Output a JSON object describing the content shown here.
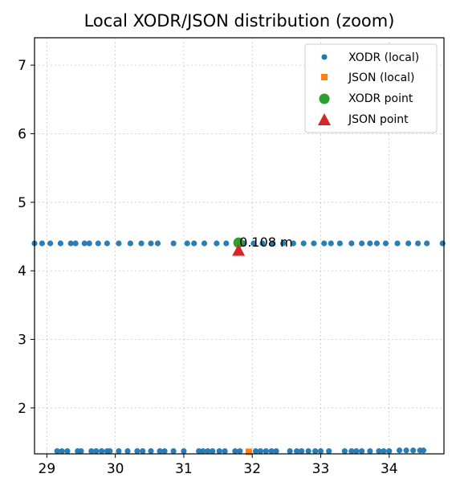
{
  "chart_data": {
    "type": "scatter",
    "title": "Local XODR/JSON distribution (zoom)",
    "xlabel": "",
    "ylabel": "",
    "xlim": [
      28.82,
      34.8
    ],
    "ylim": [
      1.33,
      7.4
    ],
    "xticks": [
      29,
      30,
      31,
      32,
      33,
      34
    ],
    "yticks": [
      2,
      3,
      4,
      5,
      6,
      7
    ],
    "grid": true,
    "legend_position": "top-right",
    "annotation": "0.108 m",
    "series": [
      {
        "name": "XODR (local)",
        "marker": "circle",
        "color": "#1f77b4",
        "points": [
          [
            28.82,
            4.4
          ],
          [
            28.93,
            4.4
          ],
          [
            29.05,
            4.4
          ],
          [
            29.2,
            4.4
          ],
          [
            29.35,
            4.4
          ],
          [
            29.42,
            4.4
          ],
          [
            29.55,
            4.4
          ],
          [
            29.62,
            4.4
          ],
          [
            29.75,
            4.4
          ],
          [
            29.88,
            4.4
          ],
          [
            30.05,
            4.4
          ],
          [
            30.22,
            4.4
          ],
          [
            30.38,
            4.4
          ],
          [
            30.52,
            4.4
          ],
          [
            30.62,
            4.4
          ],
          [
            30.85,
            4.4
          ],
          [
            31.05,
            4.4
          ],
          [
            31.15,
            4.4
          ],
          [
            31.3,
            4.4
          ],
          [
            31.48,
            4.4
          ],
          [
            31.62,
            4.4
          ],
          [
            31.88,
            4.4
          ],
          [
            32.02,
            4.4
          ],
          [
            32.15,
            4.4
          ],
          [
            32.3,
            4.4
          ],
          [
            32.45,
            4.4
          ],
          [
            32.6,
            4.4
          ],
          [
            32.75,
            4.4
          ],
          [
            32.9,
            4.4
          ],
          [
            33.05,
            4.4
          ],
          [
            33.15,
            4.4
          ],
          [
            33.28,
            4.4
          ],
          [
            33.45,
            4.4
          ],
          [
            33.6,
            4.4
          ],
          [
            33.72,
            4.4
          ],
          [
            33.82,
            4.4
          ],
          [
            33.95,
            4.4
          ],
          [
            34.12,
            4.4
          ],
          [
            34.28,
            4.4
          ],
          [
            34.42,
            4.4
          ],
          [
            34.55,
            4.4
          ],
          [
            34.78,
            4.4
          ],
          [
            29.15,
            1.37
          ],
          [
            29.22,
            1.37
          ],
          [
            29.3,
            1.37
          ],
          [
            29.45,
            1.37
          ],
          [
            29.5,
            1.37
          ],
          [
            29.65,
            1.37
          ],
          [
            29.72,
            1.37
          ],
          [
            29.8,
            1.37
          ],
          [
            29.88,
            1.37
          ],
          [
            29.92,
            1.37
          ],
          [
            30.05,
            1.37
          ],
          [
            30.18,
            1.37
          ],
          [
            30.32,
            1.37
          ],
          [
            30.4,
            1.37
          ],
          [
            30.52,
            1.37
          ],
          [
            30.65,
            1.37
          ],
          [
            30.72,
            1.37
          ],
          [
            30.85,
            1.37
          ],
          [
            31.0,
            1.37
          ],
          [
            31.22,
            1.37
          ],
          [
            31.28,
            1.37
          ],
          [
            31.35,
            1.37
          ],
          [
            31.42,
            1.37
          ],
          [
            31.52,
            1.37
          ],
          [
            31.6,
            1.37
          ],
          [
            31.75,
            1.37
          ],
          [
            31.82,
            1.37
          ],
          [
            32.05,
            1.37
          ],
          [
            32.12,
            1.37
          ],
          [
            32.2,
            1.37
          ],
          [
            32.28,
            1.37
          ],
          [
            32.35,
            1.37
          ],
          [
            32.55,
            1.37
          ],
          [
            32.65,
            1.37
          ],
          [
            32.72,
            1.37
          ],
          [
            32.82,
            1.37
          ],
          [
            32.92,
            1.37
          ],
          [
            33.0,
            1.37
          ],
          [
            33.12,
            1.37
          ],
          [
            33.35,
            1.37
          ],
          [
            33.45,
            1.37
          ],
          [
            33.52,
            1.37
          ],
          [
            33.6,
            1.37
          ],
          [
            33.72,
            1.37
          ],
          [
            33.85,
            1.37
          ],
          [
            33.92,
            1.37
          ],
          [
            34.0,
            1.37
          ],
          [
            34.15,
            1.38
          ],
          [
            34.25,
            1.38
          ],
          [
            34.35,
            1.38
          ],
          [
            34.45,
            1.38
          ],
          [
            34.5,
            1.38
          ]
        ]
      },
      {
        "name": "JSON (local)",
        "marker": "square",
        "color": "#ff7f0e",
        "points": [
          [
            31.95,
            1.36
          ]
        ]
      },
      {
        "name": "XODR point",
        "marker": "circle-large",
        "color": "#2ca02c",
        "points": [
          [
            31.8,
            4.41
          ]
        ]
      },
      {
        "name": "JSON point",
        "marker": "triangle",
        "color": "#d62728",
        "points": [
          [
            31.8,
            4.3
          ]
        ]
      }
    ]
  }
}
